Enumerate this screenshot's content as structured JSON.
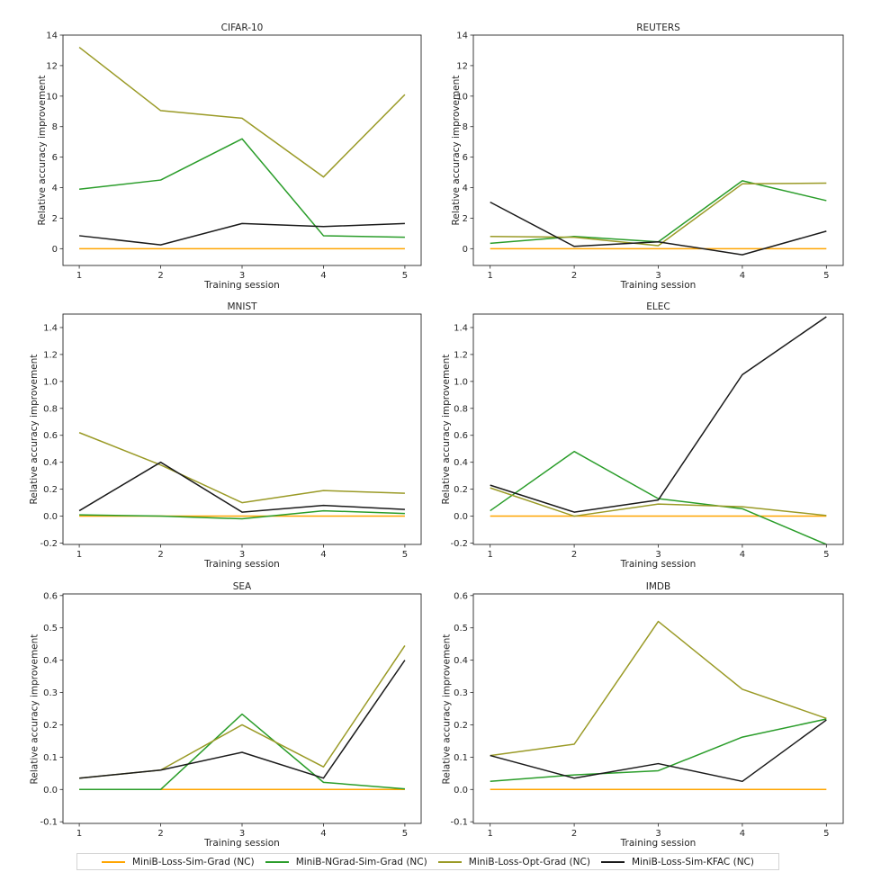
{
  "figure": {
    "xlabel": "Training session",
    "ylabel": "Relative accuracy improvement",
    "x_tick_labels": [
      "1",
      "2",
      "3",
      "4",
      "5"
    ],
    "background_color": "#ffffff",
    "axis_color": "#262626",
    "text_color": "#262626"
  },
  "legend": {
    "items": [
      {
        "label": "MiniB-Loss-Sim-Grad (NC)",
        "color": "#ffa500"
      },
      {
        "label": "MiniB-NGrad-Sim-Grad (NC)",
        "color": "#2a9d2a"
      },
      {
        "label": "MiniB-Loss-Opt-Grad (NC)",
        "color": "#9a9a26"
      },
      {
        "label": "MiniB-Loss-Sim-KFAC (NC)",
        "color": "#1a1a1a"
      }
    ]
  },
  "chart_data": [
    {
      "type": "line",
      "title": "CIFAR-10",
      "xlabel": "Training session",
      "ylabel": "Relative accuracy improvement",
      "x": [
        1,
        2,
        3,
        4,
        5
      ],
      "xlim": [
        0.8,
        5.2
      ],
      "ylim": [
        -1.1,
        14.0
      ],
      "yticks": [
        0,
        2,
        4,
        6,
        8,
        10,
        12,
        14
      ],
      "ytick_labels": [
        "0",
        "2",
        "4",
        "6",
        "8",
        "10",
        "12",
        "14"
      ],
      "grid": false,
      "legend_position": "figure-bottom",
      "series": [
        {
          "name": "MiniB-Loss-Sim-Grad (NC)",
          "color": "#ffa500",
          "values": [
            0,
            0,
            0,
            0,
            0
          ]
        },
        {
          "name": "MiniB-NGrad-Sim-Grad (NC)",
          "color": "#2a9d2a",
          "values": [
            3.9,
            4.5,
            7.2,
            0.85,
            0.75
          ]
        },
        {
          "name": "MiniB-Loss-Opt-Grad (NC)",
          "color": "#9a9a26",
          "values": [
            13.2,
            9.05,
            8.55,
            4.7,
            10.1
          ]
        },
        {
          "name": "MiniB-Loss-Sim-KFAC (NC)",
          "color": "#1a1a1a",
          "values": [
            0.85,
            0.25,
            1.65,
            1.45,
            1.65
          ]
        }
      ]
    },
    {
      "type": "line",
      "title": "REUTERS",
      "xlabel": "Training session",
      "ylabel": "Relative accuracy improvement",
      "x": [
        1,
        2,
        3,
        4,
        5
      ],
      "xlim": [
        0.8,
        5.2
      ],
      "ylim": [
        -1.1,
        14.0
      ],
      "yticks": [
        0,
        2,
        4,
        6,
        8,
        10,
        12,
        14
      ],
      "ytick_labels": [
        "0",
        "2",
        "4",
        "6",
        "8",
        "10",
        "12",
        "14"
      ],
      "grid": false,
      "legend_position": "figure-bottom",
      "series": [
        {
          "name": "MiniB-Loss-Sim-Grad (NC)",
          "color": "#ffa500",
          "values": [
            0,
            0,
            0,
            0,
            0
          ]
        },
        {
          "name": "MiniB-NGrad-Sim-Grad (NC)",
          "color": "#2a9d2a",
          "values": [
            0.35,
            0.8,
            0.45,
            4.45,
            3.15
          ]
        },
        {
          "name": "MiniB-Loss-Opt-Grad (NC)",
          "color": "#9a9a26",
          "values": [
            0.8,
            0.75,
            0.2,
            4.25,
            4.3
          ]
        },
        {
          "name": "MiniB-Loss-Sim-KFAC (NC)",
          "color": "#1a1a1a",
          "values": [
            3.05,
            0.15,
            0.45,
            -0.4,
            1.15
          ]
        }
      ]
    },
    {
      "type": "line",
      "title": "MNIST",
      "xlabel": "Training session",
      "ylabel": "Relative accuracy improvement",
      "x": [
        1,
        2,
        3,
        4,
        5
      ],
      "xlim": [
        0.8,
        5.2
      ],
      "ylim": [
        -0.21,
        1.5
      ],
      "yticks": [
        -0.2,
        0.0,
        0.2,
        0.4,
        0.6,
        0.8,
        1.0,
        1.2,
        1.4
      ],
      "ytick_labels": [
        "-0.2",
        "0.0",
        "0.2",
        "0.4",
        "0.6",
        "0.8",
        "1.0",
        "1.2",
        "1.4"
      ],
      "grid": false,
      "legend_position": "figure-bottom",
      "series": [
        {
          "name": "MiniB-Loss-Sim-Grad (NC)",
          "color": "#ffa500",
          "values": [
            0,
            0,
            0,
            0,
            0
          ]
        },
        {
          "name": "MiniB-NGrad-Sim-Grad (NC)",
          "color": "#2a9d2a",
          "values": [
            0.01,
            0.0,
            -0.02,
            0.04,
            0.02
          ]
        },
        {
          "name": "MiniB-Loss-Opt-Grad (NC)",
          "color": "#9a9a26",
          "values": [
            0.62,
            0.38,
            0.1,
            0.19,
            0.17
          ]
        },
        {
          "name": "MiniB-Loss-Sim-KFAC (NC)",
          "color": "#1a1a1a",
          "values": [
            0.04,
            0.4,
            0.03,
            0.08,
            0.05
          ]
        }
      ]
    },
    {
      "type": "line",
      "title": "ELEC",
      "xlabel": "Training session",
      "ylabel": "Relative accuracy improvement",
      "x": [
        1,
        2,
        3,
        4,
        5
      ],
      "xlim": [
        0.8,
        5.2
      ],
      "ylim": [
        -0.21,
        1.5
      ],
      "yticks": [
        -0.2,
        0.0,
        0.2,
        0.4,
        0.6,
        0.8,
        1.0,
        1.2,
        1.4
      ],
      "ytick_labels": [
        "-0.2",
        "0.0",
        "0.2",
        "0.4",
        "0.6",
        "0.8",
        "1.0",
        "1.2",
        "1.4"
      ],
      "grid": false,
      "legend_position": "figure-bottom",
      "series": [
        {
          "name": "MiniB-Loss-Sim-Grad (NC)",
          "color": "#ffa500",
          "values": [
            0,
            0,
            0,
            0,
            0
          ]
        },
        {
          "name": "MiniB-NGrad-Sim-Grad (NC)",
          "color": "#2a9d2a",
          "values": [
            0.04,
            0.48,
            0.13,
            0.055,
            -0.21
          ]
        },
        {
          "name": "MiniB-Loss-Opt-Grad (NC)",
          "color": "#9a9a26",
          "values": [
            0.21,
            0.0,
            0.09,
            0.07,
            0.005
          ]
        },
        {
          "name": "MiniB-Loss-Sim-KFAC (NC)",
          "color": "#1a1a1a",
          "values": [
            0.23,
            0.03,
            0.12,
            1.05,
            1.48
          ]
        }
      ]
    },
    {
      "type": "line",
      "title": "SEA",
      "xlabel": "Training session",
      "ylabel": "Relative accuracy improvement",
      "x": [
        1,
        2,
        3,
        4,
        5
      ],
      "xlim": [
        0.8,
        5.2
      ],
      "ylim": [
        -0.105,
        0.605
      ],
      "yticks": [
        -0.1,
        0.0,
        0.1,
        0.2,
        0.3,
        0.4,
        0.5,
        0.6
      ],
      "ytick_labels": [
        "-0.1",
        "0.0",
        "0.1",
        "0.2",
        "0.3",
        "0.4",
        "0.5",
        "0.6"
      ],
      "grid": false,
      "legend_position": "figure-bottom",
      "series": [
        {
          "name": "MiniB-Loss-Sim-Grad (NC)",
          "color": "#ffa500",
          "values": [
            0,
            0,
            0,
            0,
            0
          ]
        },
        {
          "name": "MiniB-NGrad-Sim-Grad (NC)",
          "color": "#2a9d2a",
          "values": [
            0.0,
            0.0,
            0.233,
            0.022,
            0.002
          ]
        },
        {
          "name": "MiniB-Loss-Opt-Grad (NC)",
          "color": "#9a9a26",
          "values": [
            0.035,
            0.06,
            0.2,
            0.07,
            0.445
          ]
        },
        {
          "name": "MiniB-Loss-Sim-KFAC (NC)",
          "color": "#1a1a1a",
          "values": [
            0.035,
            0.06,
            0.115,
            0.035,
            0.4
          ]
        }
      ]
    },
    {
      "type": "line",
      "title": "IMDB",
      "xlabel": "Training session",
      "ylabel": "Relative accuracy improvement",
      "x": [
        1,
        2,
        3,
        4,
        5
      ],
      "xlim": [
        0.8,
        5.2
      ],
      "ylim": [
        -0.105,
        0.605
      ],
      "yticks": [
        -0.1,
        0.0,
        0.1,
        0.2,
        0.3,
        0.4,
        0.5,
        0.6
      ],
      "ytick_labels": [
        "-0.1",
        "0.0",
        "0.1",
        "0.2",
        "0.3",
        "0.4",
        "0.5",
        "0.6"
      ],
      "grid": false,
      "legend_position": "figure-bottom",
      "series": [
        {
          "name": "MiniB-Loss-Sim-Grad (NC)",
          "color": "#ffa500",
          "values": [
            0,
            0,
            0,
            0,
            0
          ]
        },
        {
          "name": "MiniB-NGrad-Sim-Grad (NC)",
          "color": "#2a9d2a",
          "values": [
            0.025,
            0.045,
            0.058,
            0.162,
            0.218
          ]
        },
        {
          "name": "MiniB-Loss-Opt-Grad (NC)",
          "color": "#9a9a26",
          "values": [
            0.105,
            0.14,
            0.52,
            0.31,
            0.22
          ]
        },
        {
          "name": "MiniB-Loss-Sim-KFAC (NC)",
          "color": "#1a1a1a",
          "values": [
            0.105,
            0.035,
            0.08,
            0.025,
            0.215
          ]
        }
      ]
    }
  ]
}
